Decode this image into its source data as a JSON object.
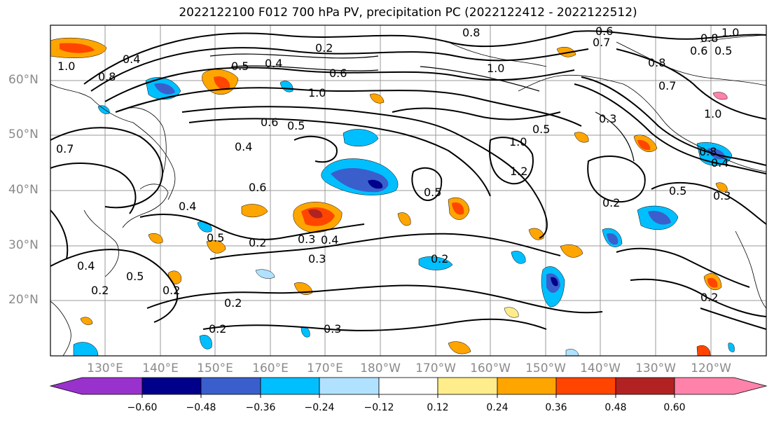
{
  "title": "2022122100 F012 700 hPa PV, precipitation PC (2022122412 - 2022122512)",
  "lat_labels": [
    "60°N",
    "50°N",
    "40°N",
    "30°N",
    "20°N"
  ],
  "lon_labels": [
    "130°E",
    "140°E",
    "150°E",
    "160°E",
    "170°E",
    "180°W",
    "170°W",
    "160°W",
    "150°W",
    "140°W",
    "130°W",
    "120°W"
  ],
  "colorbar": {
    "ticks": [
      "−0.60",
      "−0.48",
      "−0.36",
      "−0.24",
      "−0.12",
      "0.12",
      "0.24",
      "0.36",
      "0.48",
      "0.60"
    ],
    "colors": [
      "#9932CC",
      "#00008B",
      "#3A5FCD",
      "#00BFFF",
      "#B0E2FF",
      "#FFFFFF",
      "#FFEC8B",
      "#FFA500",
      "#FF4500",
      "#B22222",
      "#FF82AB"
    ]
  },
  "contour_labels": [
    "0.2",
    "0.4",
    "0.5",
    "0.6",
    "0.7",
    "0.8",
    "1.0",
    "1.2",
    "0.3"
  ]
}
